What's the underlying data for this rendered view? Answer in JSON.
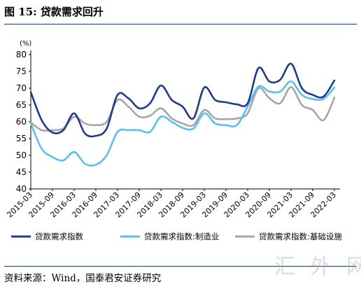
{
  "page": {
    "title": "图 15: 贷款需求回升",
    "source": "资料来源：Wind，国泰君安证券研究",
    "watermark": "汇 外 网"
  },
  "chart_data": {
    "type": "line",
    "title": "图 15: 贷款需求回升",
    "xlabel": "",
    "ylabel": "",
    "unit_label": "(%)",
    "ylim": [
      40,
      80
    ],
    "yticks": [
      40,
      45,
      50,
      55,
      60,
      65,
      70,
      75,
      80
    ],
    "grid": false,
    "legend_position": "bottom",
    "x_tick_labels": [
      "2015-03",
      "2015-09",
      "2016-03",
      "2016-09",
      "2017-03",
      "2017-09",
      "2018-03",
      "2018-09",
      "2019-03",
      "2019-09",
      "2020-03",
      "2020-09",
      "2021-03",
      "2021-09",
      "2022-03"
    ],
    "x": [
      "2015-03",
      "2015-06",
      "2015-09",
      "2015-12",
      "2016-03",
      "2016-06",
      "2016-09",
      "2016-12",
      "2017-03",
      "2017-06",
      "2017-09",
      "2017-12",
      "2018-03",
      "2018-06",
      "2018-09",
      "2018-12",
      "2019-03",
      "2019-06",
      "2019-09",
      "2019-12",
      "2020-03",
      "2020-06",
      "2020-09",
      "2020-12",
      "2021-03",
      "2021-06",
      "2021-09",
      "2021-12",
      "2022-03"
    ],
    "series": [
      {
        "name": "贷款需求指数",
        "color": "#1f3c88",
        "values": [
          68.8,
          60.5,
          56.8,
          57.5,
          62.5,
          56.5,
          55.8,
          58.0,
          68.0,
          67.0,
          64.0,
          65.5,
          70.8,
          66.5,
          64.5,
          61.0,
          70.2,
          66.5,
          65.8,
          65.2,
          65.5,
          76.0,
          72.0,
          72.5,
          77.3,
          70.0,
          68.0,
          67.5,
          72.3
        ]
      },
      {
        "name": "贷款需求指数:制造业",
        "color": "#5bc0eb",
        "values": [
          59.5,
          52.0,
          49.5,
          48.5,
          51.0,
          47.5,
          47.2,
          50.0,
          57.0,
          57.5,
          57.5,
          57.0,
          61.5,
          60.0,
          58.2,
          58.0,
          62.5,
          59.5,
          59.0,
          59.0,
          64.5,
          70.5,
          69.0,
          69.0,
          72.0,
          68.0,
          66.8,
          66.8,
          70.2
        ]
      },
      {
        "name": "贷款需求指数:基础设施",
        "color": "#a6a6a6",
        "values": [
          59.8,
          57.5,
          57.5,
          58.0,
          61.5,
          59.5,
          59.0,
          60.0,
          66.5,
          64.5,
          61.5,
          61.8,
          64.0,
          61.0,
          59.5,
          59.0,
          63.5,
          61.0,
          60.8,
          61.0,
          62.5,
          70.0,
          67.0,
          65.5,
          70.3,
          65.0,
          63.5,
          60.5,
          67.2
        ]
      }
    ]
  }
}
